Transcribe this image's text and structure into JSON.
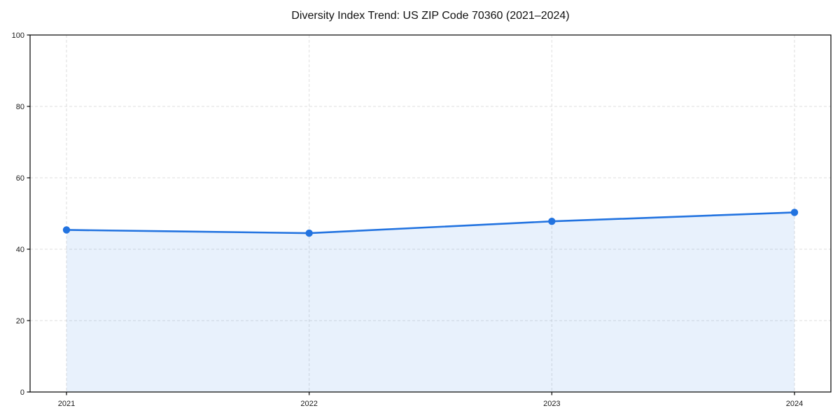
{
  "page": {
    "background_color": "#ffffff"
  },
  "chart_data": {
    "type": "area",
    "title": "Diversity Index Trend: US ZIP Code 70360 (2021–2024)",
    "xlabel": "",
    "ylabel": "",
    "x": [
      2021,
      2022,
      2023,
      2024
    ],
    "series": [
      {
        "name": "Diversity Index",
        "values": [
          45.4,
          44.5,
          47.8,
          50.3
        ]
      }
    ],
    "xticks": [
      "2021",
      "2022",
      "2023",
      "2024"
    ],
    "yticks": [
      0,
      20,
      40,
      60,
      80,
      100
    ],
    "xlim": [
      2020.85,
      2024.15
    ],
    "ylim": [
      0,
      100
    ],
    "grid": true,
    "grid_style": "dashed",
    "grid_color": "#d9d9d9",
    "line_color": "#2273e0",
    "fill_color": "rgba(34, 115, 224, 0.10)",
    "marker": "circle",
    "marker_color": "#2273e0",
    "border_color": "#000000",
    "legend_position": "none"
  }
}
